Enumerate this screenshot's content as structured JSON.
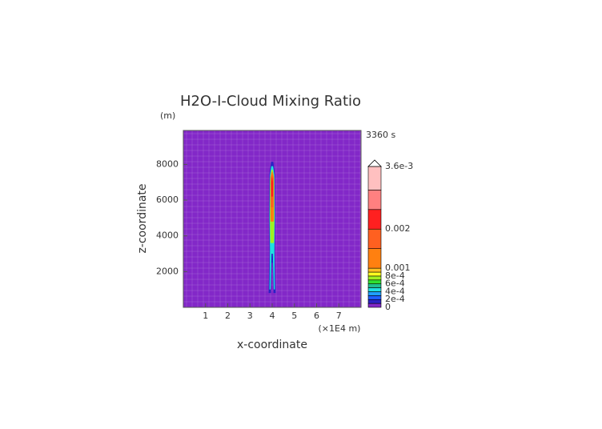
{
  "chart_data": {
    "type": "contour",
    "title": "H2O-I-Cloud Mixing Ratio",
    "y_unit": "(m)",
    "time_label": "3360 s",
    "x_label": "x-coordinate",
    "x_unit": "(×1E4 m)",
    "y_label": "z-coordinate",
    "xlim": [
      0,
      8
    ],
    "xticks": [
      1,
      2,
      3,
      4,
      5,
      6,
      7
    ],
    "ylim": [
      0,
      9900
    ],
    "yticks": [
      2000,
      4000,
      6000,
      8000
    ],
    "background_color": "#8228c8",
    "levels": [
      0,
      0.0001,
      0.0002,
      0.0003,
      0.0004,
      0.0005,
      0.0006,
      0.0007,
      0.0008,
      0.0009,
      0.001,
      0.0015,
      0.002,
      0.0025,
      0.003,
      0.0036
    ],
    "level_colors": [
      "#8228c8",
      "#2a22c4",
      "#1f5fff",
      "#20a0ff",
      "#20e0e0",
      "#20c090",
      "#30e030",
      "#a0f020",
      "#ffff20",
      "#ffc020",
      "#ff8010",
      "#ff6020",
      "#ff2020",
      "#ff8080",
      "#ffc0c0"
    ],
    "over_color": "#ffffff",
    "colorbar_lim": [
      0,
      0.0036
    ],
    "colorbar_ticks": [
      0,
      {
        "value": 0.0002,
        "label": "2e-4"
      },
      {
        "value": 0.0004,
        "label": "4e-4"
      },
      {
        "value": 0.0006,
        "label": "6e-4"
      },
      {
        "value": 0.0008,
        "label": "8e-4"
      },
      0.001,
      0.002,
      {
        "value": 0.0036,
        "label": "3.6e-3"
      }
    ],
    "contours": [
      {
        "level": 0.0001,
        "x": [
          3.84,
          3.94,
          3.98,
          4.02,
          4.06,
          4.16,
          4.12,
          4.14,
          4.12,
          4.05,
          3.95,
          3.88,
          3.86,
          3.88
        ],
        "y": [
          800,
          800,
          2500,
          2500,
          800,
          800,
          3000,
          5000,
          7500,
          8150,
          8150,
          7500,
          5000,
          3000
        ]
      },
      {
        "level": 0.0004,
        "x": [
          3.88,
          3.93,
          3.97,
          4.03,
          4.07,
          4.12,
          4.1,
          4.12,
          4.1,
          4.04,
          3.96,
          3.9,
          3.88,
          3.9
        ],
        "y": [
          1000,
          1000,
          3000,
          3000,
          1000,
          1000,
          3200,
          5000,
          7400,
          7900,
          7900,
          7400,
          5000,
          3200
        ]
      },
      {
        "level": 0.0007,
        "x": [
          3.92,
          4.08,
          4.1,
          4.09,
          4.03,
          3.97,
          3.91,
          3.9
        ],
        "y": [
          3600,
          3600,
          5000,
          7200,
          7700,
          7700,
          7200,
          5000
        ]
      },
      {
        "level": 0.001,
        "x": [
          3.93,
          4.07,
          4.08,
          4.07,
          4.02,
          3.98,
          3.93,
          3.92
        ],
        "y": [
          4800,
          4800,
          6000,
          7300,
          7600,
          7600,
          7300,
          6000
        ]
      },
      {
        "level": 0.0015,
        "x": [
          3.95,
          4.05,
          4.06,
          4.0,
          3.94
        ],
        "y": [
          5600,
          5600,
          7200,
          7500,
          7200
        ]
      },
      {
        "level": 0.002,
        "x": [
          3.96,
          4.04,
          4.04,
          4.0,
          3.96
        ],
        "y": [
          6200,
          6200,
          7000,
          7300,
          7000
        ]
      }
    ]
  }
}
